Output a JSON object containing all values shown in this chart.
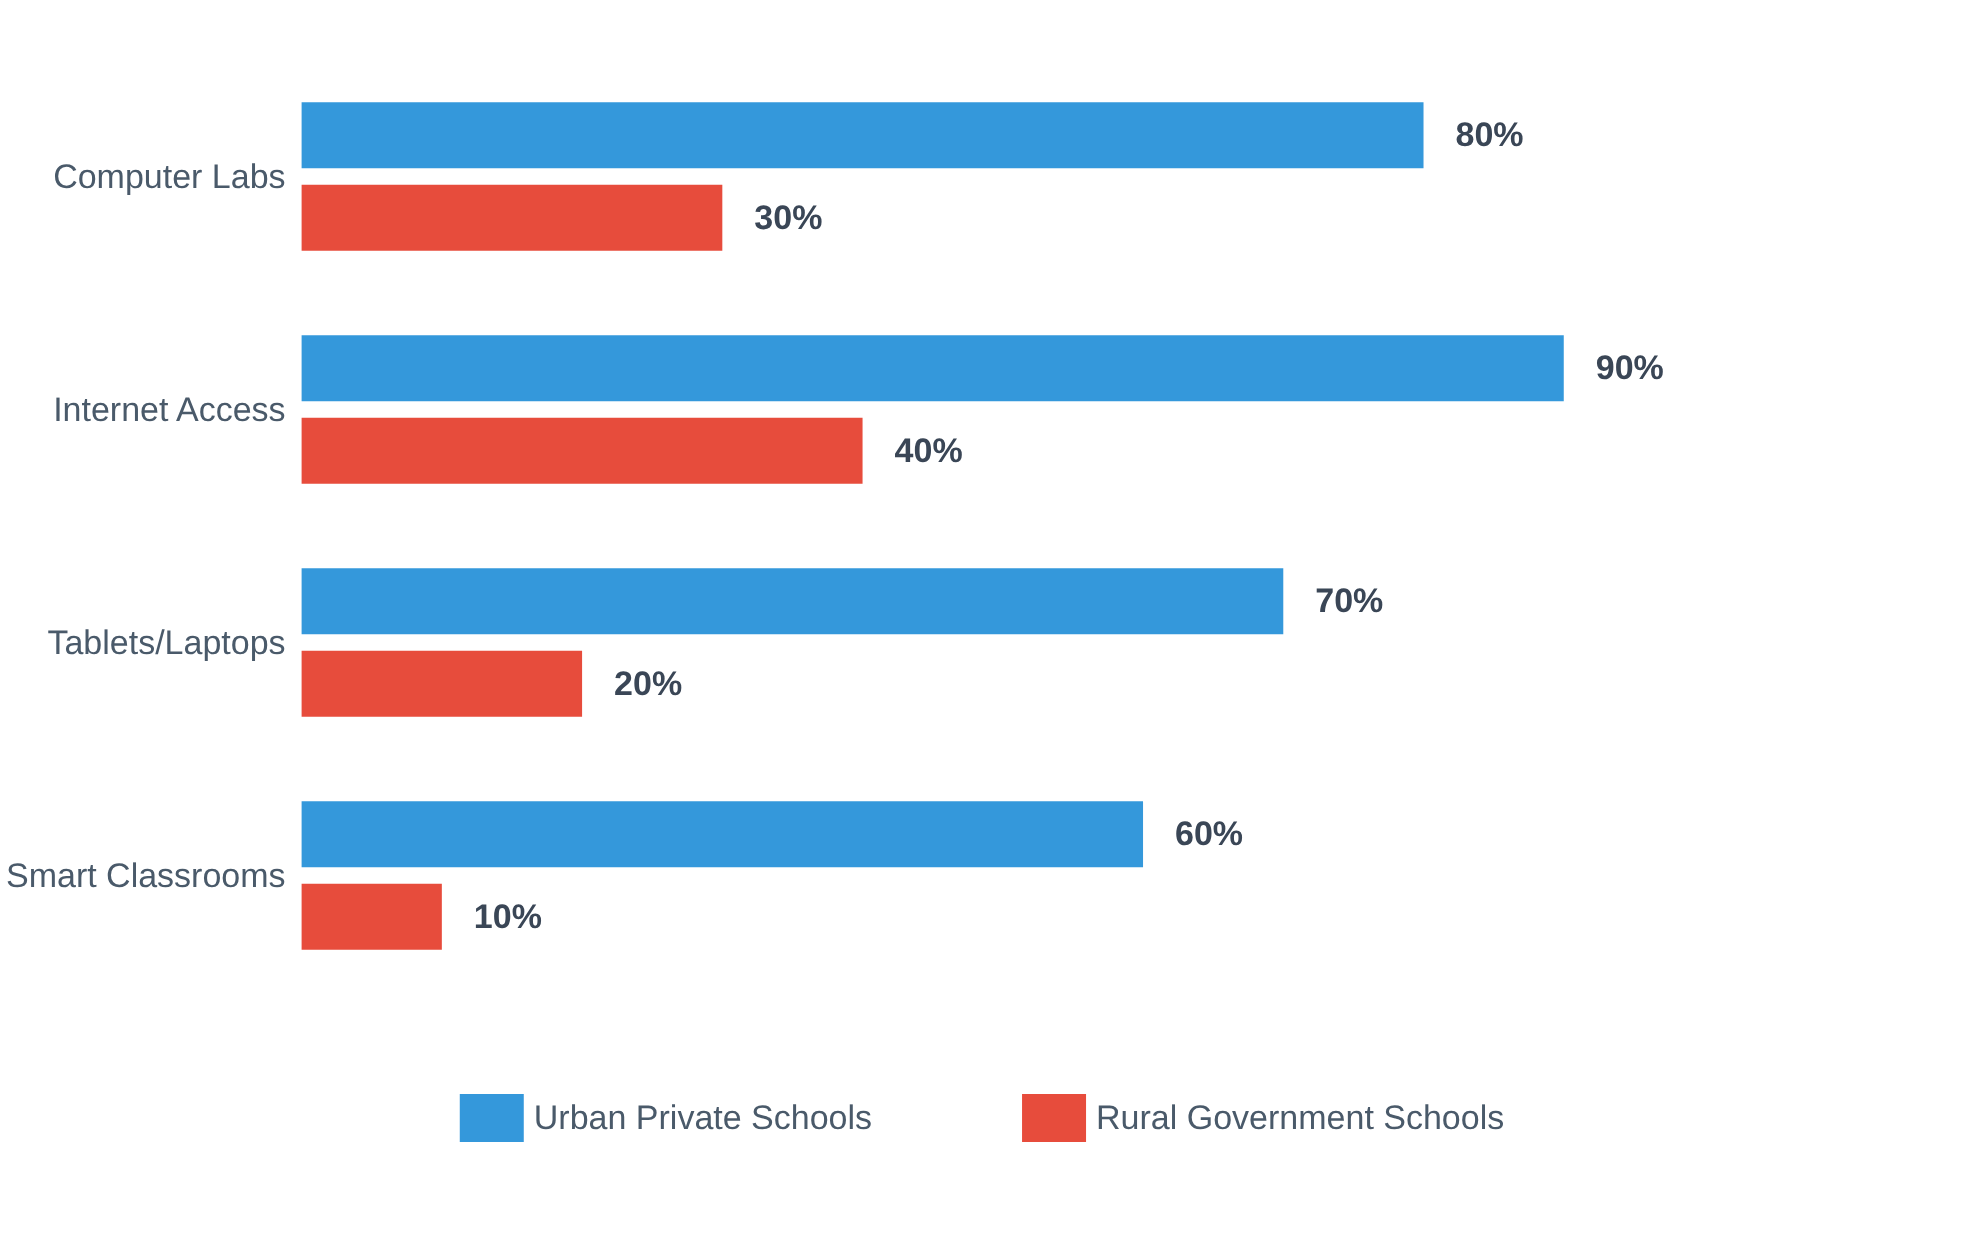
{
  "chart_data": {
    "type": "bar",
    "orientation": "horizontal",
    "categories": [
      "Computer Labs",
      "Internet Access",
      "Tablets/Laptops",
      "Smart Classrooms"
    ],
    "series": [
      {
        "name": "Urban Private Schools",
        "color": "#3498db",
        "values": [
          80,
          90,
          70,
          60
        ],
        "value_labels": [
          "80%",
          "90%",
          "70%",
          "60%"
        ]
      },
      {
        "name": "Rural Government Schools",
        "color": "#e74c3c",
        "values": [
          30,
          40,
          20,
          10
        ],
        "value_labels": [
          "30%",
          "40%",
          "20%",
          "10%"
        ]
      }
    ],
    "grid": false,
    "legend": "bottom"
  }
}
